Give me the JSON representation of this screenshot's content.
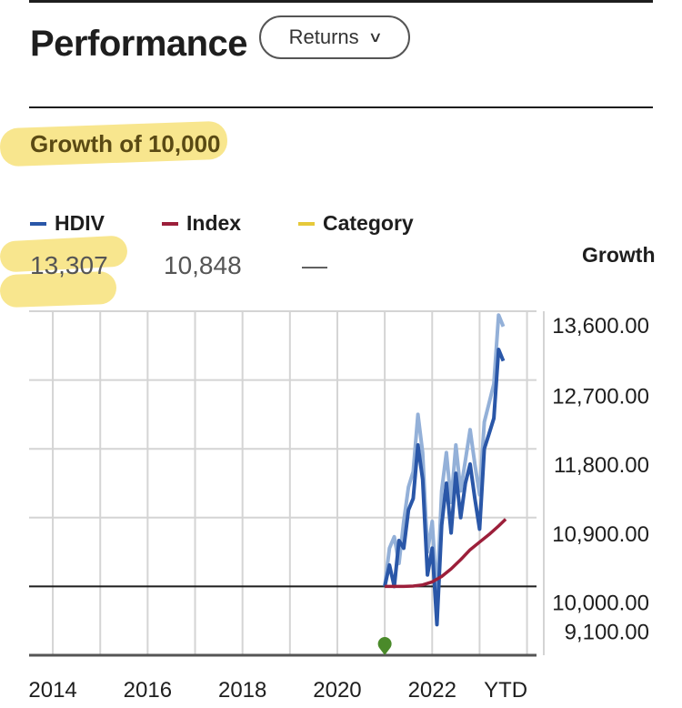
{
  "header": {
    "title": "Performance",
    "dropdown_label": "Returns"
  },
  "subtitle": "Growth of 10,000",
  "legend": [
    {
      "name": "HDIV",
      "value": "13,307",
      "color": "#2a57a8"
    },
    {
      "name": "Index",
      "value": "10,848",
      "color": "#9c1f3a"
    },
    {
      "name": "Category",
      "value": "—",
      "color": "#e6c93a"
    }
  ],
  "axis_title_right": "Growth",
  "colors": {
    "hdiv": "#2a57a8",
    "hdiv_light": "#93b0d8",
    "index": "#9c1f3a",
    "marker": "#4a8a2a",
    "highlight": "#f7e27a"
  },
  "chart_data": {
    "type": "line",
    "title": "Growth of 10,000",
    "x_tick_labels": [
      "2014",
      "2016",
      "2018",
      "2020",
      "2022",
      "YTD"
    ],
    "x_tick_years": [
      2014,
      2016,
      2018,
      2020,
      2022,
      2023.55
    ],
    "y_tick_labels": [
      "13,600.00",
      "12,700.00",
      "11,800.00",
      "10,900.00",
      "10,000.00",
      "9,100.00"
    ],
    "ylim": [
      9100,
      13600
    ],
    "xlim": [
      2013.5,
      2024.2
    ],
    "baseline": 10000,
    "grid": true,
    "series": [
      {
        "name": "HDIV",
        "x": [
          2021.0,
          2021.1,
          2021.2,
          2021.3,
          2021.4,
          2021.5,
          2021.6,
          2021.7,
          2021.8,
          2021.9,
          2022.0,
          2022.1,
          2022.2,
          2022.3,
          2022.4,
          2022.5,
          2022.6,
          2022.7,
          2022.8,
          2022.9,
          2023.0,
          2023.1,
          2023.2,
          2023.3,
          2023.4,
          2023.5
        ],
        "values": [
          10000,
          10280,
          10000,
          10600,
          10500,
          11000,
          11150,
          11850,
          11400,
          10150,
          10500,
          9500,
          10800,
          11350,
          10700,
          11480,
          10900,
          11350,
          11600,
          11150,
          10750,
          11800,
          12000,
          12200,
          13100,
          12950
        ]
      },
      {
        "name": "HDIV (light)",
        "x": [
          2021.0,
          2021.1,
          2021.2,
          2021.3,
          2021.4,
          2021.5,
          2021.6,
          2021.7,
          2021.8,
          2021.9,
          2022.0,
          2022.1,
          2022.2,
          2022.3,
          2022.4,
          2022.5,
          2022.6,
          2022.7,
          2022.8,
          2022.9,
          2023.0,
          2023.1,
          2023.2,
          2023.3,
          2023.4,
          2023.5
        ],
        "values": [
          10000,
          10500,
          10650,
          10300,
          10850,
          11300,
          11500,
          12250,
          11750,
          10450,
          10850,
          9850,
          11250,
          11750,
          11100,
          11850,
          11250,
          11650,
          12050,
          11600,
          11200,
          12150,
          12400,
          12650,
          13550,
          13400
        ]
      },
      {
        "name": "Index",
        "x": [
          2021.0,
          2021.2,
          2021.4,
          2021.6,
          2021.8,
          2022.0,
          2022.2,
          2022.4,
          2022.6,
          2022.8,
          2023.0,
          2023.2,
          2023.4,
          2023.55
        ],
        "values": [
          10000,
          10000,
          10000,
          10005,
          10020,
          10060,
          10130,
          10230,
          10350,
          10480,
          10580,
          10680,
          10790,
          10880
        ]
      }
    ],
    "marker": {
      "x": 2021.0
    }
  }
}
